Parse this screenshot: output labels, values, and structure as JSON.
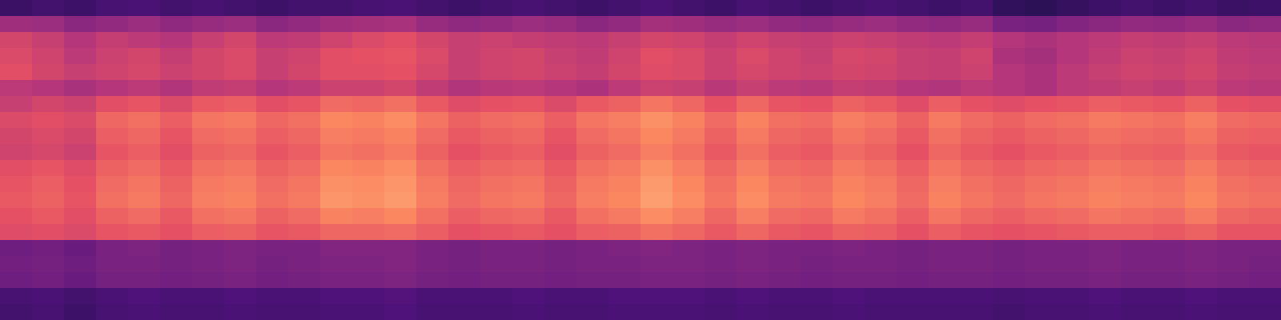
{
  "chart_data": {
    "type": "heatmap",
    "color": "magma",
    "zlim": [
      0,
      1
    ],
    "tick_labels": false,
    "values": [
      [
        0.2,
        0.22,
        0.21,
        0.23,
        0.24,
        0.22,
        0.23,
        0.22,
        0.21,
        0.22,
        0.22,
        0.23,
        0.24,
        0.22,
        0.21,
        0.22,
        0.23,
        0.22,
        0.21,
        0.22,
        0.24,
        0.22,
        0.21,
        0.23,
        0.22,
        0.21,
        0.22,
        0.23,
        0.22,
        0.21,
        0.22,
        0.18,
        0.17,
        0.19,
        0.21,
        0.22,
        0.21,
        0.22,
        0.2,
        0.21
      ],
      [
        0.45,
        0.44,
        0.4,
        0.42,
        0.44,
        0.41,
        0.43,
        0.44,
        0.4,
        0.42,
        0.45,
        0.46,
        0.47,
        0.43,
        0.41,
        0.42,
        0.44,
        0.43,
        0.4,
        0.42,
        0.46,
        0.45,
        0.43,
        0.44,
        0.42,
        0.41,
        0.43,
        0.44,
        0.42,
        0.41,
        0.43,
        0.36,
        0.35,
        0.38,
        0.4,
        0.42,
        0.41,
        0.43,
        0.4,
        0.41
      ],
      [
        0.58,
        0.55,
        0.5,
        0.54,
        0.52,
        0.5,
        0.55,
        0.58,
        0.52,
        0.53,
        0.57,
        0.6,
        0.62,
        0.58,
        0.55,
        0.56,
        0.54,
        0.53,
        0.52,
        0.55,
        0.58,
        0.57,
        0.54,
        0.57,
        0.55,
        0.54,
        0.56,
        0.55,
        0.53,
        0.52,
        0.54,
        0.5,
        0.48,
        0.5,
        0.52,
        0.54,
        0.53,
        0.55,
        0.52,
        0.51
      ],
      [
        0.6,
        0.57,
        0.52,
        0.56,
        0.58,
        0.54,
        0.58,
        0.6,
        0.55,
        0.57,
        0.62,
        0.63,
        0.64,
        0.6,
        0.55,
        0.57,
        0.58,
        0.55,
        0.53,
        0.57,
        0.62,
        0.6,
        0.56,
        0.6,
        0.57,
        0.55,
        0.59,
        0.58,
        0.55,
        0.54,
        0.57,
        0.48,
        0.46,
        0.5,
        0.53,
        0.56,
        0.55,
        0.57,
        0.53,
        0.52
      ],
      [
        0.62,
        0.58,
        0.55,
        0.57,
        0.59,
        0.56,
        0.58,
        0.6,
        0.55,
        0.58,
        0.62,
        0.62,
        0.63,
        0.59,
        0.55,
        0.57,
        0.58,
        0.56,
        0.54,
        0.58,
        0.61,
        0.6,
        0.56,
        0.59,
        0.57,
        0.56,
        0.58,
        0.57,
        0.55,
        0.54,
        0.56,
        0.5,
        0.48,
        0.52,
        0.55,
        0.57,
        0.56,
        0.58,
        0.54,
        0.53
      ],
      [
        0.52,
        0.5,
        0.47,
        0.5,
        0.52,
        0.49,
        0.53,
        0.54,
        0.5,
        0.52,
        0.56,
        0.56,
        0.58,
        0.53,
        0.49,
        0.51,
        0.52,
        0.5,
        0.48,
        0.52,
        0.56,
        0.55,
        0.51,
        0.55,
        0.52,
        0.51,
        0.54,
        0.53,
        0.5,
        0.49,
        0.52,
        0.5,
        0.48,
        0.52,
        0.53,
        0.55,
        0.53,
        0.56,
        0.52,
        0.51
      ],
      [
        0.55,
        0.58,
        0.56,
        0.62,
        0.64,
        0.6,
        0.65,
        0.66,
        0.62,
        0.64,
        0.69,
        0.68,
        0.7,
        0.65,
        0.61,
        0.63,
        0.64,
        0.6,
        0.65,
        0.67,
        0.71,
        0.68,
        0.63,
        0.68,
        0.64,
        0.63,
        0.67,
        0.65,
        0.61,
        0.66,
        0.63,
        0.61,
        0.63,
        0.64,
        0.66,
        0.65,
        0.64,
        0.67,
        0.63,
        0.62
      ],
      [
        0.6,
        0.62,
        0.6,
        0.68,
        0.7,
        0.66,
        0.71,
        0.72,
        0.68,
        0.7,
        0.75,
        0.74,
        0.76,
        0.71,
        0.67,
        0.69,
        0.7,
        0.66,
        0.71,
        0.73,
        0.77,
        0.74,
        0.69,
        0.74,
        0.7,
        0.69,
        0.73,
        0.71,
        0.67,
        0.72,
        0.69,
        0.67,
        0.69,
        0.7,
        0.72,
        0.71,
        0.7,
        0.73,
        0.69,
        0.68
      ],
      [
        0.58,
        0.6,
        0.58,
        0.66,
        0.68,
        0.64,
        0.69,
        0.7,
        0.66,
        0.68,
        0.73,
        0.72,
        0.74,
        0.69,
        0.65,
        0.67,
        0.68,
        0.64,
        0.69,
        0.71,
        0.75,
        0.72,
        0.67,
        0.72,
        0.68,
        0.67,
        0.71,
        0.69,
        0.65,
        0.7,
        0.67,
        0.65,
        0.67,
        0.68,
        0.7,
        0.69,
        0.68,
        0.71,
        0.67,
        0.66
      ],
      [
        0.57,
        0.59,
        0.56,
        0.64,
        0.66,
        0.62,
        0.67,
        0.68,
        0.64,
        0.66,
        0.71,
        0.7,
        0.72,
        0.67,
        0.63,
        0.65,
        0.66,
        0.62,
        0.67,
        0.69,
        0.73,
        0.7,
        0.65,
        0.7,
        0.66,
        0.65,
        0.69,
        0.67,
        0.63,
        0.68,
        0.65,
        0.63,
        0.65,
        0.66,
        0.68,
        0.67,
        0.66,
        0.69,
        0.65,
        0.64
      ],
      [
        0.62,
        0.64,
        0.61,
        0.67,
        0.69,
        0.65,
        0.7,
        0.71,
        0.67,
        0.69,
        0.75,
        0.74,
        0.76,
        0.7,
        0.66,
        0.68,
        0.69,
        0.65,
        0.7,
        0.72,
        0.77,
        0.73,
        0.68,
        0.73,
        0.69,
        0.68,
        0.72,
        0.7,
        0.66,
        0.71,
        0.68,
        0.66,
        0.68,
        0.69,
        0.71,
        0.7,
        0.69,
        0.72,
        0.68,
        0.67
      ],
      [
        0.64,
        0.66,
        0.63,
        0.69,
        0.71,
        0.67,
        0.72,
        0.73,
        0.69,
        0.71,
        0.77,
        0.76,
        0.78,
        0.72,
        0.68,
        0.7,
        0.71,
        0.67,
        0.72,
        0.74,
        0.79,
        0.75,
        0.7,
        0.75,
        0.71,
        0.7,
        0.74,
        0.72,
        0.68,
        0.73,
        0.7,
        0.68,
        0.7,
        0.71,
        0.73,
        0.72,
        0.71,
        0.74,
        0.7,
        0.69
      ],
      [
        0.65,
        0.67,
        0.64,
        0.7,
        0.72,
        0.68,
        0.73,
        0.74,
        0.7,
        0.72,
        0.78,
        0.77,
        0.79,
        0.73,
        0.69,
        0.71,
        0.72,
        0.68,
        0.73,
        0.75,
        0.8,
        0.76,
        0.71,
        0.76,
        0.72,
        0.71,
        0.75,
        0.73,
        0.69,
        0.74,
        0.71,
        0.69,
        0.71,
        0.72,
        0.74,
        0.73,
        0.72,
        0.75,
        0.71,
        0.7
      ],
      [
        0.63,
        0.65,
        0.62,
        0.67,
        0.69,
        0.65,
        0.7,
        0.71,
        0.67,
        0.69,
        0.74,
        0.73,
        0.75,
        0.7,
        0.66,
        0.68,
        0.69,
        0.65,
        0.7,
        0.72,
        0.76,
        0.73,
        0.68,
        0.73,
        0.69,
        0.68,
        0.72,
        0.7,
        0.66,
        0.71,
        0.68,
        0.66,
        0.68,
        0.69,
        0.71,
        0.7,
        0.69,
        0.72,
        0.68,
        0.67
      ],
      [
        0.61,
        0.62,
        0.6,
        0.64,
        0.65,
        0.63,
        0.66,
        0.67,
        0.64,
        0.65,
        0.68,
        0.68,
        0.69,
        0.66,
        0.63,
        0.64,
        0.65,
        0.63,
        0.66,
        0.67,
        0.7,
        0.68,
        0.65,
        0.68,
        0.65,
        0.64,
        0.67,
        0.66,
        0.63,
        0.66,
        0.64,
        0.63,
        0.64,
        0.65,
        0.66,
        0.66,
        0.65,
        0.67,
        0.64,
        0.64
      ],
      [
        0.33,
        0.34,
        0.32,
        0.36,
        0.37,
        0.35,
        0.36,
        0.37,
        0.36,
        0.36,
        0.38,
        0.38,
        0.38,
        0.36,
        0.35,
        0.36,
        0.36,
        0.35,
        0.36,
        0.37,
        0.38,
        0.37,
        0.36,
        0.37,
        0.36,
        0.36,
        0.37,
        0.36,
        0.35,
        0.36,
        0.36,
        0.35,
        0.36,
        0.36,
        0.37,
        0.36,
        0.36,
        0.37,
        0.36,
        0.36
      ],
      [
        0.34,
        0.35,
        0.33,
        0.36,
        0.36,
        0.35,
        0.36,
        0.37,
        0.35,
        0.36,
        0.37,
        0.37,
        0.38,
        0.36,
        0.35,
        0.36,
        0.36,
        0.35,
        0.36,
        0.36,
        0.37,
        0.37,
        0.36,
        0.37,
        0.36,
        0.35,
        0.36,
        0.36,
        0.35,
        0.36,
        0.36,
        0.35,
        0.36,
        0.36,
        0.37,
        0.36,
        0.36,
        0.37,
        0.36,
        0.35
      ],
      [
        0.33,
        0.34,
        0.32,
        0.35,
        0.35,
        0.34,
        0.35,
        0.36,
        0.34,
        0.35,
        0.36,
        0.36,
        0.37,
        0.35,
        0.34,
        0.35,
        0.35,
        0.34,
        0.35,
        0.35,
        0.36,
        0.36,
        0.35,
        0.36,
        0.35,
        0.34,
        0.35,
        0.35,
        0.34,
        0.35,
        0.35,
        0.34,
        0.35,
        0.35,
        0.36,
        0.35,
        0.35,
        0.36,
        0.35,
        0.34
      ],
      [
        0.23,
        0.24,
        0.22,
        0.24,
        0.25,
        0.24,
        0.24,
        0.25,
        0.24,
        0.24,
        0.25,
        0.25,
        0.26,
        0.24,
        0.24,
        0.24,
        0.25,
        0.24,
        0.24,
        0.25,
        0.25,
        0.25,
        0.24,
        0.25,
        0.24,
        0.24,
        0.25,
        0.24,
        0.24,
        0.24,
        0.24,
        0.23,
        0.24,
        0.24,
        0.25,
        0.24,
        0.24,
        0.25,
        0.24,
        0.24
      ],
      [
        0.22,
        0.23,
        0.21,
        0.23,
        0.24,
        0.23,
        0.23,
        0.24,
        0.23,
        0.23,
        0.24,
        0.24,
        0.25,
        0.23,
        0.23,
        0.23,
        0.24,
        0.23,
        0.23,
        0.24,
        0.24,
        0.24,
        0.23,
        0.24,
        0.23,
        0.23,
        0.24,
        0.23,
        0.23,
        0.23,
        0.23,
        0.22,
        0.23,
        0.23,
        0.24,
        0.23,
        0.23,
        0.24,
        0.23,
        0.23
      ]
    ]
  }
}
